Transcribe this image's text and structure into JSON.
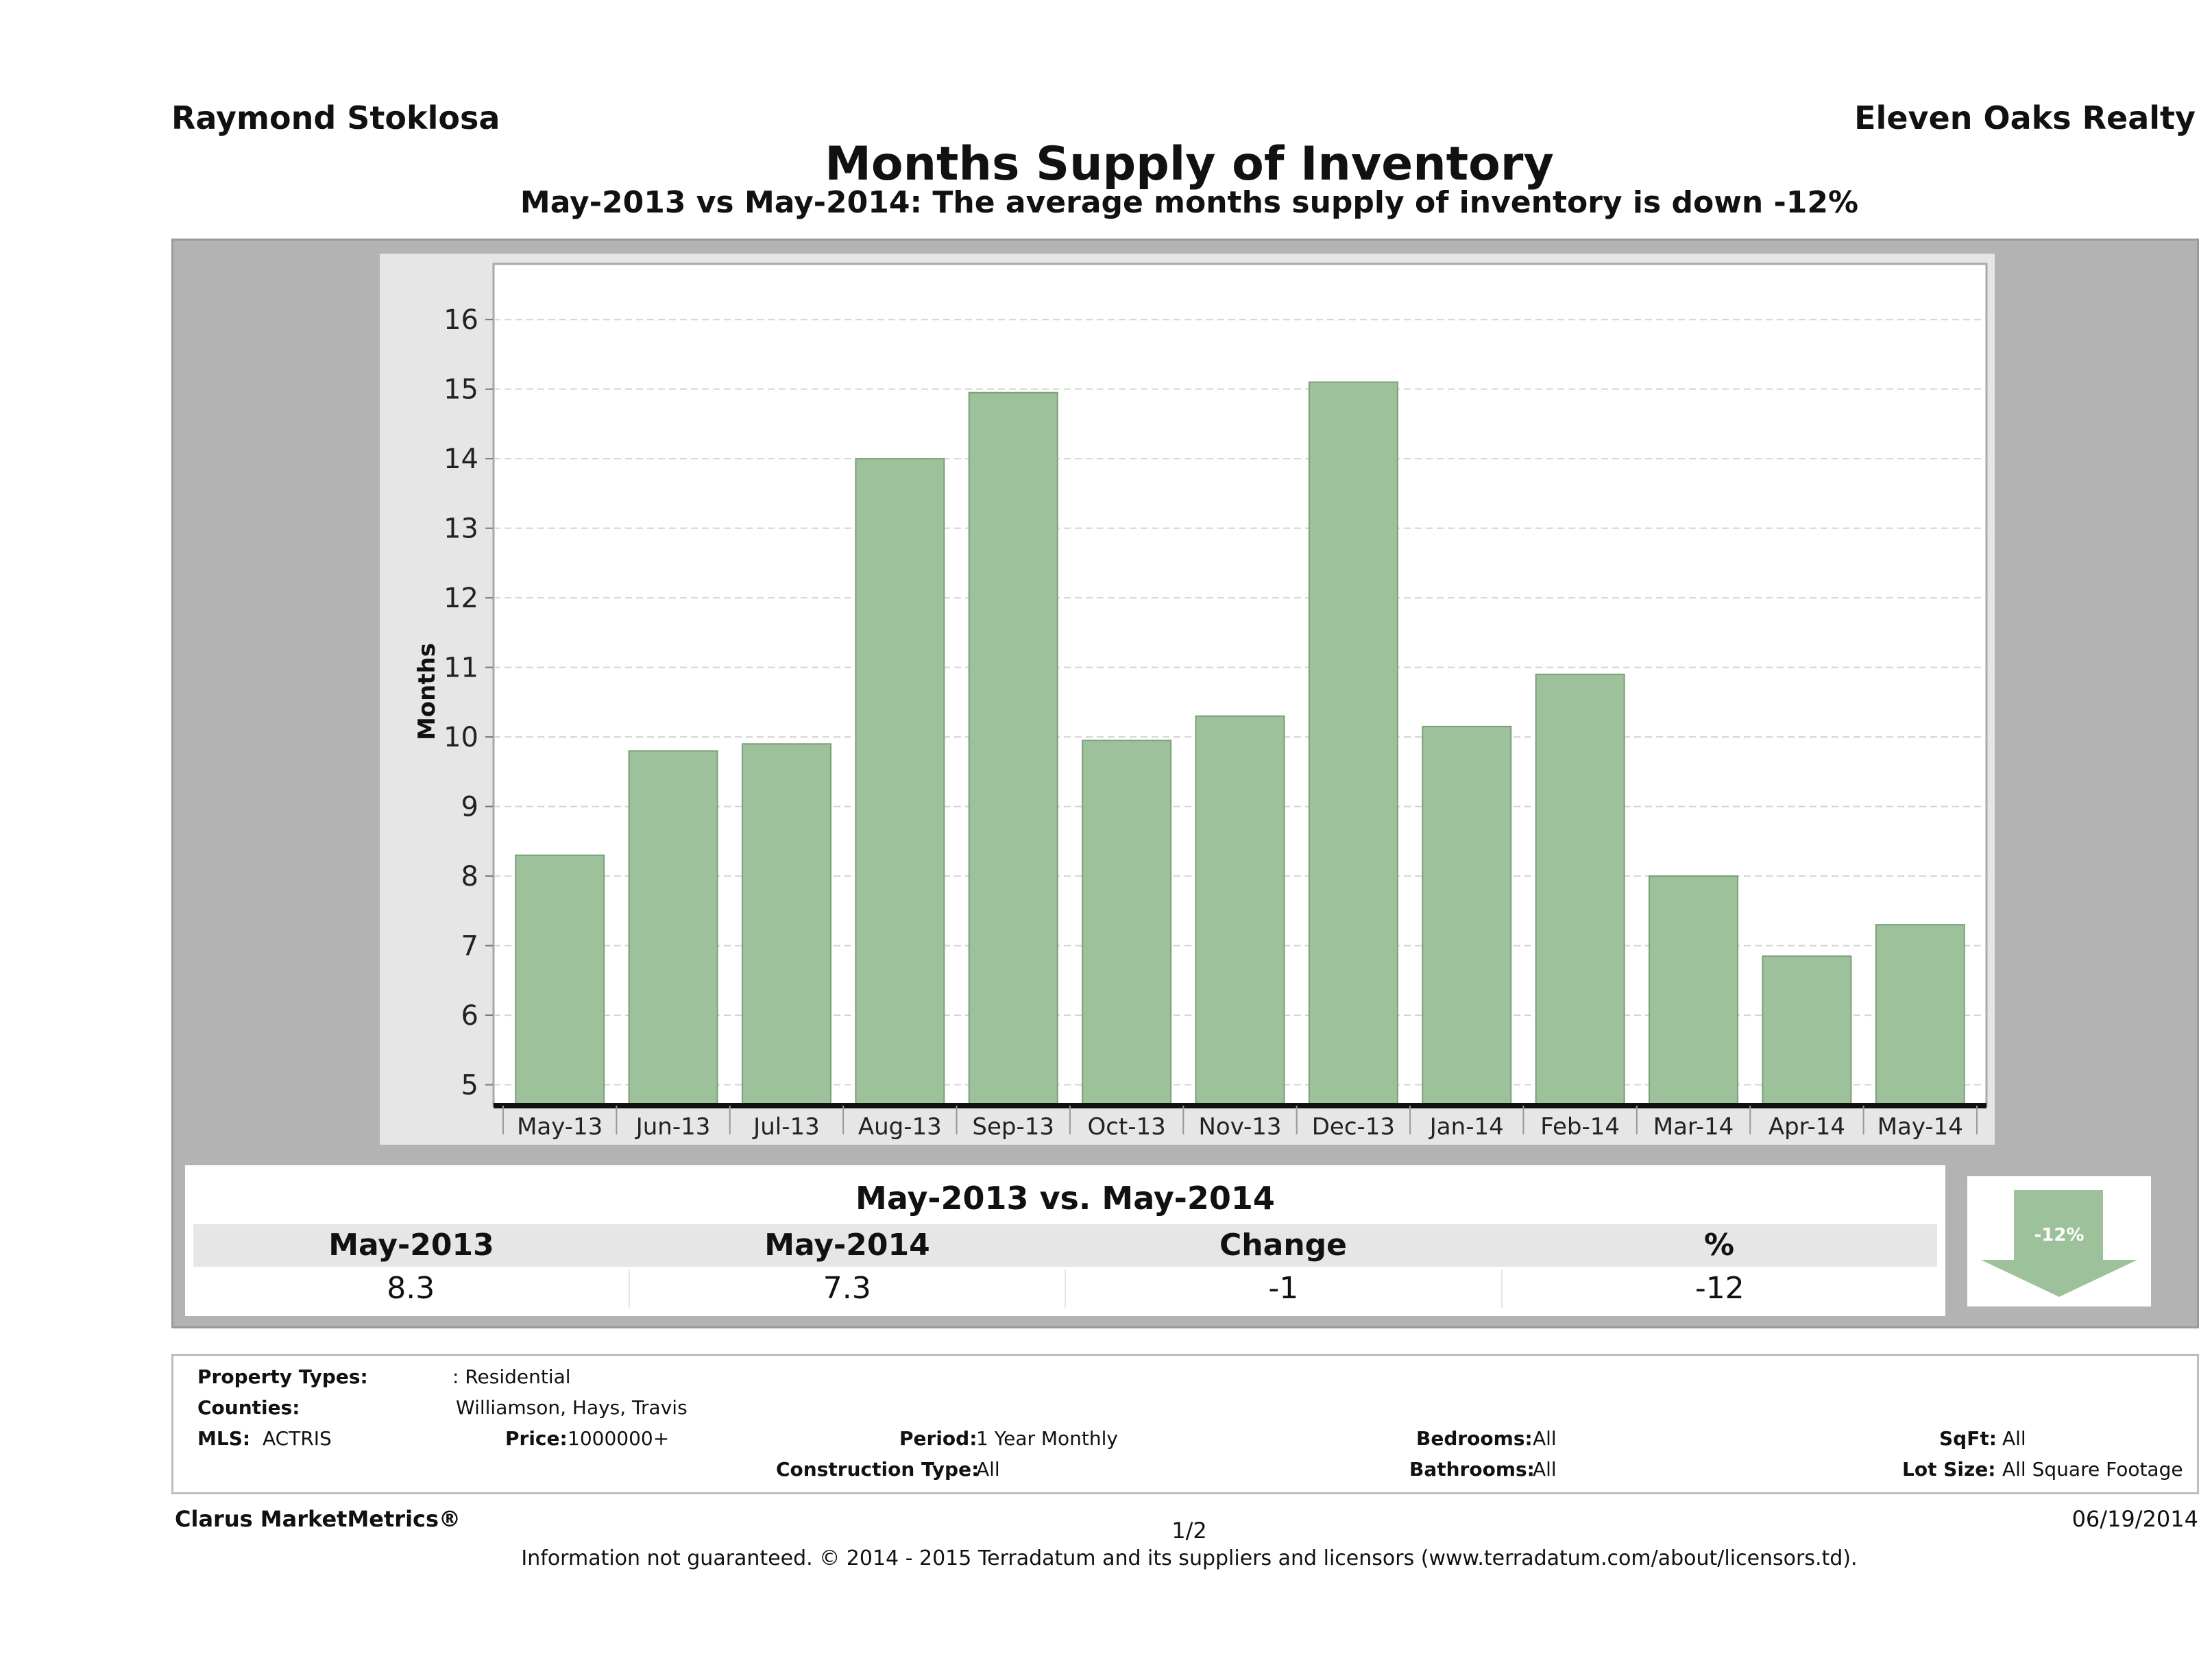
{
  "header": {
    "agent": "Raymond Stoklosa",
    "company": "Eleven Oaks Realty",
    "title": "Months Supply of Inventory",
    "subtitle": "May-2013 vs May-2014: The average months supply of inventory is down -12%"
  },
  "chart_data": {
    "type": "bar",
    "categories": [
      "May-13",
      "Jun-13",
      "Jul-13",
      "Aug-13",
      "Sep-13",
      "Oct-13",
      "Nov-13",
      "Dec-13",
      "Jan-14",
      "Feb-14",
      "Mar-14",
      "Apr-14",
      "May-14"
    ],
    "values": [
      8.3,
      9.8,
      9.9,
      14.0,
      14.95,
      9.95,
      10.3,
      15.1,
      10.15,
      10.9,
      8.0,
      6.85,
      7.3
    ],
    "ylabel": "Months",
    "xlabel": "",
    "ylim": [
      4.7,
      16.8
    ],
    "yticks": [
      5,
      6,
      7,
      8,
      9,
      10,
      11,
      12,
      13,
      14,
      15,
      16
    ],
    "grid": true,
    "bar_color": "#9dc19a"
  },
  "summary": {
    "heading": "May-2013 vs. May-2014",
    "columns": [
      "May-2013",
      "May-2014",
      "Change",
      "%"
    ],
    "values": [
      "8.3",
      "7.3",
      "-1",
      "-12"
    ],
    "indicator": "-12%",
    "indicator_color": "#9dc19a"
  },
  "filters": {
    "property_types_label": "Property Types:",
    "property_types_value": ": Residential",
    "counties_label": "Counties:",
    "counties_value": "Williamson, Hays, Travis",
    "mls_label": "MLS:",
    "mls_value": "ACTRIS",
    "price_label": "Price:",
    "price_value": "1000000+",
    "period_label": "Period:",
    "period_value": "1 Year Monthly",
    "construction_label": "Construction Type:",
    "construction_value": "All",
    "bedrooms_label": "Bedrooms:",
    "bedrooms_value": "All",
    "bathrooms_label": "Bathrooms:",
    "bathrooms_value": "All",
    "sqft_label": "SqFt:",
    "sqft_value": "All",
    "lotsize_label": "Lot Size:",
    "lotsize_value": "All Square Footage"
  },
  "footer": {
    "brand": "Clarus MarketMetrics®",
    "page": "1/2",
    "date": "06/19/2014",
    "disclaimer": "Information not guaranteed. © 2014 - 2015 Terradatum and its suppliers and licensors (www.terradatum.com/about/licensors.td)."
  }
}
